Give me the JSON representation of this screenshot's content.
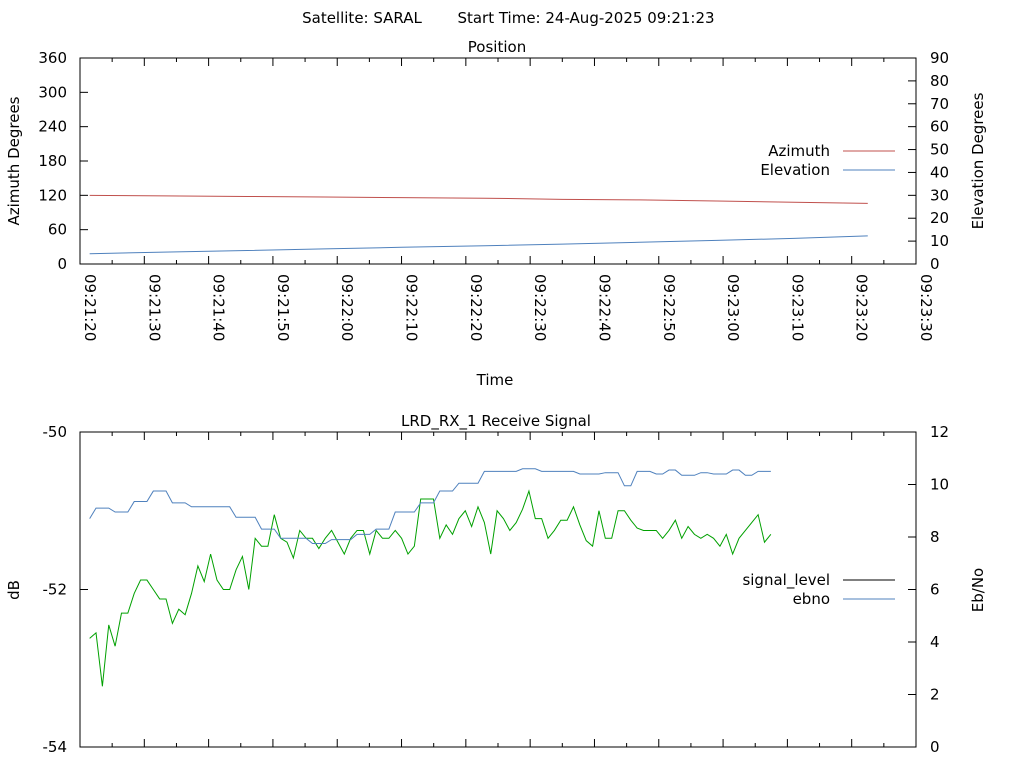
{
  "header": {
    "satellite_label": "Satellite: SARAL",
    "start_time_label": "Start Time: 24-Aug-2025 09:21:23"
  },
  "colors": {
    "azimuth": "#c0504d",
    "elevation": "#4f81bd",
    "signal_level": "#00a000",
    "signal_level_legend": "#000000",
    "ebno": "#4f81bd"
  },
  "chart_data": [
    {
      "type": "line",
      "title": "Position",
      "xlabel": "Time",
      "ylabel": "Azimuth Degrees",
      "y2label": "Elevation Degrees",
      "ylim": [
        0,
        360
      ],
      "y2lim": [
        0,
        90
      ],
      "xlim": [
        "09:21:20",
        "09:23:30"
      ],
      "yticks": [
        "0",
        "60",
        "120",
        "180",
        "240",
        "300",
        "360"
      ],
      "y2ticks": [
        "0",
        "10",
        "20",
        "30",
        "40",
        "50",
        "60",
        "70",
        "80",
        "90"
      ],
      "xticks": [
        "09:21:20",
        "09:21:30",
        "09:21:40",
        "09:21:50",
        "09:22:00",
        "09:22:10",
        "09:22:20",
        "09:22:30",
        "09:22:40",
        "09:22:50",
        "09:23:00",
        "09:23:10",
        "09:23:20",
        "09:23:30"
      ],
      "legend_position": "right",
      "x": [
        "09:21:21.5",
        "09:21:33",
        "09:21:46",
        "09:21:58",
        "09:22:10",
        "09:22:23",
        "09:22:35",
        "09:22:47",
        "09:22:59",
        "09:23:11",
        "09:23:22.5"
      ],
      "series": [
        {
          "name": "Azimuth",
          "axis": "left",
          "values": [
            120,
            119,
            118,
            117,
            116,
            115,
            113,
            112,
            110,
            108,
            106
          ]
        },
        {
          "name": "Elevation",
          "axis": "right",
          "values": [
            4.5,
            5.2,
            5.9,
            6.6,
            7.3,
            8.0,
            8.7,
            9.5,
            10.3,
            11.2,
            12.3
          ]
        }
      ]
    },
    {
      "type": "line",
      "title": "LRD_RX_1 Receive Signal",
      "xlabel": "",
      "ylabel": "dB",
      "y2label": "Eb/No",
      "ylim": [
        -54,
        -50
      ],
      "y2lim": [
        0,
        12
      ],
      "xlim": [
        "09:21:20",
        "09:23:30"
      ],
      "yticks": [
        "-54",
        "-52",
        "-50"
      ],
      "y2ticks": [
        "0",
        "2",
        "4",
        "6",
        "8",
        "10",
        "12"
      ],
      "legend_position": "right",
      "series": [
        {
          "name": "signal_level",
          "axis": "left",
          "x_start": "09:21:21.5",
          "x_step_s": 0.99,
          "values": [
            -52.62,
            -52.55,
            -53.23,
            -52.45,
            -52.72,
            -52.3,
            -52.3,
            -52.05,
            -51.88,
            -51.88,
            -52.0,
            -52.12,
            -52.12,
            -52.43,
            -52.25,
            -52.32,
            -52.05,
            -51.7,
            -51.9,
            -51.55,
            -51.88,
            -52.0,
            -52.0,
            -51.75,
            -51.58,
            -52.0,
            -51.35,
            -51.45,
            -51.45,
            -51.05,
            -51.35,
            -51.4,
            -51.6,
            -51.25,
            -51.35,
            -51.35,
            -51.48,
            -51.35,
            -51.25,
            -51.4,
            -51.55,
            -51.35,
            -51.25,
            -51.25,
            -51.55,
            -51.25,
            -51.35,
            -51.35,
            -51.25,
            -51.35,
            -51.55,
            -51.45,
            -50.85,
            -50.85,
            -50.85,
            -51.35,
            -51.18,
            -51.3,
            -51.1,
            -51.0,
            -51.2,
            -50.95,
            -51.15,
            -51.55,
            -51.0,
            -51.1,
            -51.25,
            -51.15,
            -50.98,
            -50.75,
            -51.1,
            -51.1,
            -51.35,
            -51.25,
            -51.12,
            -51.12,
            -50.95,
            -51.18,
            -51.38,
            -51.45,
            -51.0,
            -51.35,
            -51.35,
            -51.0,
            -51.0,
            -51.12,
            -51.22,
            -51.25,
            -51.25,
            -51.25,
            -51.35,
            -51.25,
            -51.12,
            -51.35,
            -51.2,
            -51.3,
            -51.35,
            -51.3,
            -51.35,
            -51.45,
            -51.3,
            -51.55,
            -51.35,
            -51.25,
            -51.15,
            -51.05,
            -51.4,
            -51.3
          ]
        },
        {
          "name": "ebno",
          "axis": "right",
          "x_start": "09:21:21.5",
          "x_step_s": 0.99,
          "values": [
            8.7,
            9.1,
            9.1,
            9.1,
            8.95,
            8.95,
            8.95,
            9.35,
            9.35,
            9.35,
            9.75,
            9.75,
            9.75,
            9.3,
            9.3,
            9.3,
            9.15,
            9.15,
            9.15,
            9.15,
            9.15,
            9.15,
            9.15,
            8.75,
            8.75,
            8.75,
            8.75,
            8.3,
            8.3,
            8.3,
            7.95,
            7.95,
            7.95,
            7.95,
            7.95,
            7.75,
            7.75,
            7.75,
            7.9,
            7.9,
            7.9,
            7.9,
            8.1,
            8.1,
            8.1,
            8.3,
            8.3,
            8.3,
            8.95,
            8.95,
            8.95,
            8.95,
            9.3,
            9.3,
            9.3,
            9.75,
            9.75,
            9.75,
            10.05,
            10.05,
            10.05,
            10.05,
            10.5,
            10.5,
            10.5,
            10.5,
            10.5,
            10.5,
            10.6,
            10.6,
            10.6,
            10.5,
            10.5,
            10.5,
            10.5,
            10.5,
            10.5,
            10.4,
            10.4,
            10.4,
            10.4,
            10.45,
            10.45,
            10.45,
            9.95,
            9.95,
            10.5,
            10.5,
            10.5,
            10.4,
            10.4,
            10.55,
            10.55,
            10.35,
            10.35,
            10.35,
            10.45,
            10.45,
            10.4,
            10.4,
            10.4,
            10.55,
            10.55,
            10.35,
            10.35,
            10.5,
            10.5,
            10.5
          ]
        }
      ]
    }
  ]
}
